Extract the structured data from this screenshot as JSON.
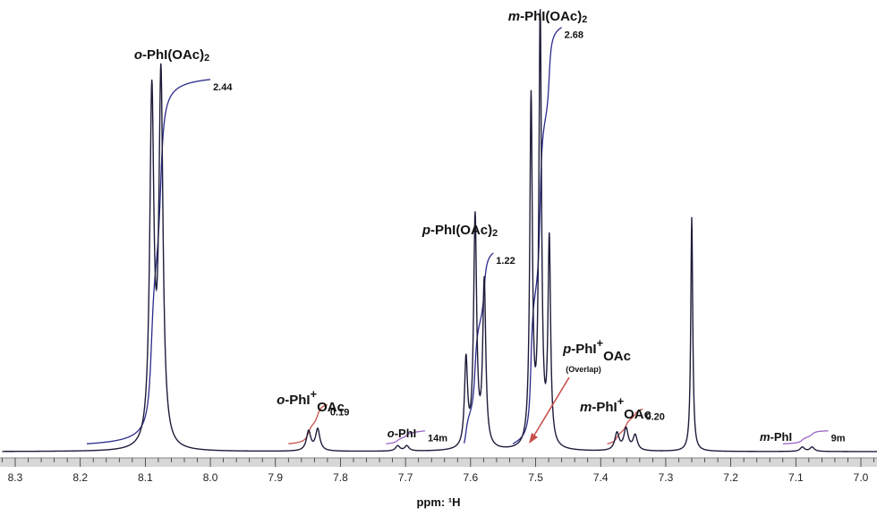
{
  "chart_data": {
    "type": "line",
    "xlabel": "ppm: ¹H",
    "xlim": [
      8.32,
      6.96
    ],
    "x_reversed": true,
    "grid": false,
    "ticks": [
      8.3,
      8.2,
      8.1,
      8.0,
      7.9,
      7.8,
      7.7,
      7.6,
      7.5,
      7.4,
      7.3,
      7.2,
      7.1,
      7.0
    ],
    "tick_labels": [
      "8.3",
      "8.2",
      "8.1",
      "8.0",
      "7.9",
      "7.8",
      "7.7",
      "7.6",
      "7.5",
      "7.4",
      "7.3",
      "7.2",
      "7.1",
      "7.0"
    ],
    "colors": {
      "spectrum": "#1c1c3a",
      "integral_major": "#2b2a8c",
      "integral_cation": "#c8504b",
      "integral_minor": "#9a63c4",
      "arrow": "#c8504b"
    },
    "peaks": [
      {
        "ppm": 8.09,
        "height": 0.8,
        "width": 0.0038
      },
      {
        "ppm": 8.076,
        "height": 0.84,
        "width": 0.0038
      },
      {
        "ppm": 7.849,
        "height": 0.045,
        "width": 0.004
      },
      {
        "ppm": 7.835,
        "height": 0.05,
        "width": 0.004
      },
      {
        "ppm": 7.712,
        "height": 0.012,
        "width": 0.004
      },
      {
        "ppm": 7.698,
        "height": 0.012,
        "width": 0.004
      },
      {
        "ppm": 7.607,
        "height": 0.2,
        "width": 0.0028
      },
      {
        "ppm": 7.593,
        "height": 0.53,
        "width": 0.0028
      },
      {
        "ppm": 7.579,
        "height": 0.38,
        "width": 0.0028
      },
      {
        "ppm": 7.507,
        "height": 0.8,
        "width": 0.0024
      },
      {
        "ppm": 7.493,
        "height": 1.0,
        "width": 0.0024
      },
      {
        "ppm": 7.479,
        "height": 0.47,
        "width": 0.0024
      },
      {
        "ppm": 7.375,
        "height": 0.04,
        "width": 0.004
      },
      {
        "ppm": 7.361,
        "height": 0.05,
        "width": 0.004
      },
      {
        "ppm": 7.347,
        "height": 0.035,
        "width": 0.004
      },
      {
        "ppm": 7.26,
        "height": 0.54,
        "width": 0.0018
      },
      {
        "ppm": 7.09,
        "height": 0.01,
        "width": 0.004
      },
      {
        "ppm": 7.075,
        "height": 0.01,
        "width": 0.004
      }
    ],
    "integrals": [
      {
        "start": 8.19,
        "end": 8.0,
        "total": 0.84,
        "value": "2.44",
        "kind": "major"
      },
      {
        "start": 7.88,
        "end": 7.82,
        "total": 0.09,
        "value": "0.19",
        "kind": "cation"
      },
      {
        "start": 7.73,
        "end": 7.67,
        "total": 0.03,
        "value": "14m",
        "kind": "minor"
      },
      {
        "start": 7.61,
        "end": 7.565,
        "total": 0.44,
        "value": "1.22",
        "kind": "major"
      },
      {
        "start": 7.535,
        "end": 7.46,
        "total": 0.96,
        "value": "2.68",
        "kind": "major"
      },
      {
        "start": 7.39,
        "end": 7.335,
        "total": 0.08,
        "value": "0.20",
        "kind": "cation"
      },
      {
        "start": 7.12,
        "end": 7.05,
        "total": 0.03,
        "value": "9m",
        "kind": "minor"
      }
    ],
    "annotations": [
      {
        "prefix": "o",
        "main": "-PhI(OAc)",
        "sub": "2",
        "sup": ""
      },
      {
        "prefix": "m",
        "main": "-PhI(OAc)",
        "sub": "2",
        "sup": ""
      },
      {
        "prefix": "p",
        "main": "-PhI(OAc)",
        "sub": "2",
        "sup": ""
      },
      {
        "prefix": "o",
        "main": "-PhI",
        "sub": "",
        "sup": "+",
        "tail": "OAc"
      },
      {
        "prefix": "o",
        "main": "-PhI",
        "sub": "",
        "sup": ""
      },
      {
        "prefix": "p",
        "main": "-PhI",
        "sub": "",
        "sup": "+",
        "tail": "OAc"
      },
      {
        "prefix": "m",
        "main": "-PhI",
        "sub": "",
        "sup": "+",
        "tail": "OAc"
      },
      {
        "prefix": "m",
        "main": "-PhI",
        "sub": "",
        "sup": ""
      }
    ],
    "overlap_note": "(Overlap)"
  }
}
